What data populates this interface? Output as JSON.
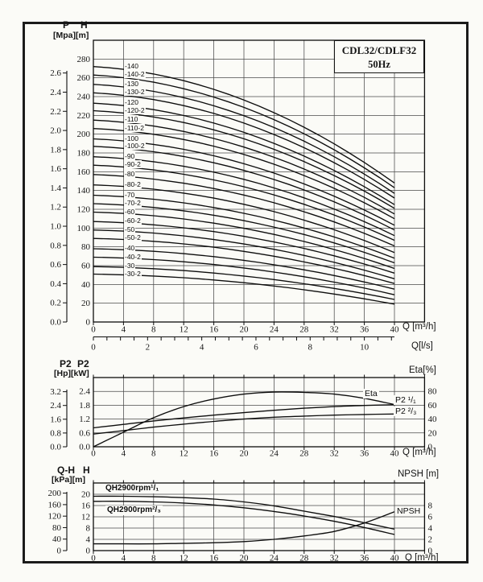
{
  "figure": {
    "background": "#fbfbf7",
    "border_color": "#1b1b1b",
    "ink_color": "#0d0d0d",
    "grid_color": "#4a4a4a"
  },
  "chart_data": [
    {
      "id": "main-qh-curves",
      "type": "line",
      "title": "CDL32/CDLF32",
      "subtitle": "50Hz",
      "p_axis_name": "P",
      "h_axis_name": "H",
      "left_axis_units": "[Mpa][m]",
      "xlabel": "Q [m³/h]",
      "x2label": "Q[l/s]",
      "xlim": [
        0,
        44
      ],
      "ylim_h_m": [
        0,
        300
      ],
      "grid": true,
      "x_ticks": [
        "0",
        "4",
        "8",
        "12",
        "16",
        "20",
        "24",
        "28",
        "32",
        "36",
        "40"
      ],
      "h_ticks_m": [
        "0",
        "20",
        "40",
        "60",
        "80",
        "100",
        "120",
        "140",
        "160",
        "180",
        "200",
        "220",
        "240",
        "260",
        "280"
      ],
      "p_ticks_mpa": [
        "0.0",
        "0.2",
        "0.4",
        "0.6",
        "0.8",
        "1.0",
        "1.2",
        "1.4",
        "1.6",
        "1.8",
        "2.0",
        "2.2",
        "2.4",
        "2.6"
      ],
      "ls_ticks": [
        "0",
        "2",
        "4",
        "6",
        "8",
        "10"
      ],
      "series_note": "head in m at Q=0 (shutoff) and at Q=40 m3/h",
      "series": [
        {
          "name": "-140",
          "head_m_at_q0": 272,
          "head_m_at_q40": 148
        },
        {
          "name": "-140-2",
          "head_m_at_q0": 263,
          "head_m_at_q40": 143
        },
        {
          "name": "-130",
          "head_m_at_q0": 253,
          "head_m_at_q40": 137
        },
        {
          "name": "-130-2",
          "head_m_at_q0": 244,
          "head_m_at_q40": 132
        },
        {
          "name": "-120",
          "head_m_at_q0": 233,
          "head_m_at_q40": 125
        },
        {
          "name": "-120-2",
          "head_m_at_q0": 225,
          "head_m_at_q40": 121
        },
        {
          "name": "-110",
          "head_m_at_q0": 215,
          "head_m_at_q40": 115
        },
        {
          "name": "-110-2",
          "head_m_at_q0": 206,
          "head_m_at_q40": 110
        },
        {
          "name": "-100",
          "head_m_at_q0": 195,
          "head_m_at_q40": 103
        },
        {
          "name": "-100-2",
          "head_m_at_q0": 187,
          "head_m_at_q40": 98
        },
        {
          "name": "-90",
          "head_m_at_q0": 176,
          "head_m_at_q40": 92
        },
        {
          "name": "-90-2",
          "head_m_at_q0": 167,
          "head_m_at_q40": 87
        },
        {
          "name": "-80",
          "head_m_at_q0": 157,
          "head_m_at_q40": 81
        },
        {
          "name": "-80-2",
          "head_m_at_q0": 146,
          "head_m_at_q40": 74
        },
        {
          "name": "-70",
          "head_m_at_q0": 135,
          "head_m_at_q40": 68
        },
        {
          "name": "-70-2",
          "head_m_at_q0": 126,
          "head_m_at_q40": 63
        },
        {
          "name": "-60",
          "head_m_at_q0": 117,
          "head_m_at_q40": 57
        },
        {
          "name": "-60-2",
          "head_m_at_q0": 107,
          "head_m_at_q40": 52
        },
        {
          "name": "-50",
          "head_m_at_q0": 98,
          "head_m_at_q40": 46
        },
        {
          "name": "-50-2",
          "head_m_at_q0": 89,
          "head_m_at_q40": 41
        },
        {
          "name": "-40",
          "head_m_at_q0": 78,
          "head_m_at_q40": 35
        },
        {
          "name": "-40-2",
          "head_m_at_q0": 69,
          "head_m_at_q40": 29
        },
        {
          "name": "-30",
          "head_m_at_q0": 59,
          "head_m_at_q40": 24
        },
        {
          "name": "-30-2",
          "head_m_at_q0": 51,
          "head_m_at_q40": 19
        }
      ]
    },
    {
      "id": "power-efficiency",
      "type": "line",
      "left_axis_name_hp": "P2",
      "left_axis_name_kw": "P2",
      "left_axis_units": "[Hp][kW]",
      "right_axis_label": "Eta[%]",
      "xlabel": "Q [m³/h]",
      "xlim": [
        0,
        44
      ],
      "ylim_kw": [
        0,
        3.0
      ],
      "ylim_eta_pct": [
        0,
        100
      ],
      "grid": true,
      "x": [
        0,
        4,
        8,
        12,
        16,
        20,
        24,
        28,
        32,
        36,
        40
      ],
      "x_ticks": [
        "0",
        "4",
        "8",
        "12",
        "16",
        "20",
        "24",
        "28",
        "32",
        "36",
        "40"
      ],
      "kw_ticks": [
        "0.0",
        "0.6",
        "1.2",
        "1.8",
        "2.4"
      ],
      "hp_ticks": [
        "0.0",
        "0.8",
        "1.6",
        "2.4",
        "3.2"
      ],
      "eta_ticks": [
        "0",
        "20",
        "40",
        "60",
        "80"
      ],
      "series": [
        {
          "name": "P2 ¹/₁",
          "axis": "kW",
          "values": [
            0.82,
            0.97,
            1.12,
            1.25,
            1.37,
            1.48,
            1.58,
            1.67,
            1.74,
            1.79,
            1.82
          ]
        },
        {
          "name": "P2 ²/₃",
          "axis": "kW",
          "values": [
            0.55,
            0.7,
            0.85,
            0.98,
            1.1,
            1.2,
            1.28,
            1.33,
            1.37,
            1.4,
            1.42
          ]
        },
        {
          "name": "Eta",
          "axis": "%",
          "values": [
            0,
            21,
            42,
            58,
            69,
            76,
            79,
            78.5,
            76,
            70,
            61
          ]
        }
      ]
    },
    {
      "id": "qh2900-npsh",
      "type": "line",
      "left_axis_name_qh": "Q-H",
      "left_axis_name_h": "H",
      "left_axis_units": "[kPa][m]",
      "right_axis_label": "NPSH [m]",
      "xlabel": "Q [m³/h]",
      "xlim": [
        0,
        44
      ],
      "ylim_h_m": [
        0,
        24
      ],
      "grid": true,
      "x": [
        0,
        4,
        8,
        12,
        16,
        20,
        24,
        28,
        32,
        36,
        40
      ],
      "x_ticks": [
        "0",
        "4",
        "8",
        "12",
        "16",
        "20",
        "24",
        "28",
        "32",
        "36",
        "40"
      ],
      "m_ticks": [
        "0",
        "4",
        "8",
        "12",
        "16",
        "20"
      ],
      "kpa_ticks": [
        "0",
        "40",
        "80",
        "120",
        "160",
        "200"
      ],
      "npsh_ticks": [
        "0",
        "2",
        "4",
        "6",
        "8"
      ],
      "series": [
        {
          "name": "QH2900rpm¹/₁",
          "axis": "m",
          "values": [
            19.3,
            19.3,
            19.1,
            18.8,
            18.3,
            17.3,
            15.9,
            14.0,
            12.1,
            9.9,
            7.6
          ]
        },
        {
          "name": "QH2900rpm²/₃",
          "axis": "m",
          "values": [
            17.5,
            17.5,
            17.3,
            16.9,
            16.2,
            15.2,
            13.9,
            12.3,
            10.4,
            8.2,
            5.7
          ]
        },
        {
          "name": "NPSH",
          "axis": "NPSH m",
          "values": [
            1.2,
            1.2,
            1.2,
            1.3,
            1.4,
            1.6,
            2.0,
            2.6,
            3.4,
            4.9,
            6.9
          ]
        }
      ]
    }
  ]
}
